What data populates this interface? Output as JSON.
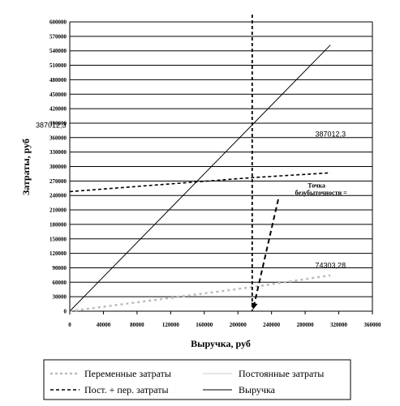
{
  "chart_data": {
    "type": "line",
    "xlabel": "Выручка, руб",
    "ylabel": "Затраты, руб",
    "xlim": [
      0,
      360000
    ],
    "ylim": [
      0,
      600000
    ],
    "x_ticks": [
      "0",
      "40000",
      "80000",
      "120000",
      "160000",
      "200000",
      "240000",
      "280000",
      "320000",
      "360000"
    ],
    "y_ticks": [
      "0",
      "30000",
      "60000",
      "90000",
      "120000",
      "150000",
      "180000",
      "210000",
      "240000",
      "270000",
      "300000",
      "330000",
      "360000",
      "390000",
      "420000",
      "450000",
      "480000",
      "510000",
      "540000",
      "570000",
      "600000"
    ],
    "grid": "horizontal",
    "legend_position": "bottom",
    "series": [
      {
        "name": "Переменные затраты",
        "style": "dotted",
        "color": "#bbbbbb",
        "points": [
          [
            0,
            0
          ],
          [
            217000,
            50000
          ],
          [
            310000,
            74303
          ]
        ]
      },
      {
        "name": "Постоянные затраты",
        "style": "solid",
        "color": "#cccccc",
        "points": [
          [
            0,
            0
          ],
          [
            0,
            0
          ]
        ]
      },
      {
        "name": "Пост. + пер. затраты",
        "style": "dashed",
        "color": "#000000",
        "points": [
          [
            0,
            248000
          ],
          [
            217000,
            277000
          ],
          [
            310000,
            287000
          ]
        ]
      },
      {
        "name": "Выручка",
        "style": "solid",
        "color": "#000000",
        "points": [
          [
            0,
            0
          ],
          [
            310000,
            552000
          ]
        ]
      }
    ],
    "breakeven_x": 217000,
    "annotations": [
      {
        "text": "387012,3",
        "x": 0,
        "y": 381000
      },
      {
        "text": "387012,3",
        "x": 292000,
        "y": 362000
      },
      {
        "text": "74303,28",
        "x": 292000,
        "y": 90000
      },
      {
        "text": "Точка",
        "x": 283000,
        "y": 256000
      },
      {
        "text": "безубыточности =",
        "x": 268000,
        "y": 241000
      }
    ]
  }
}
